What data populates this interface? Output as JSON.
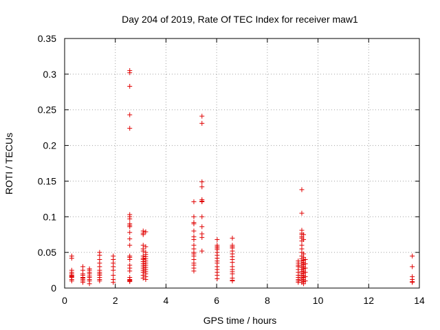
{
  "chart_data": {
    "type": "scatter",
    "title": "Day 204 of 2019, Rate Of TEC Index for receiver maw1",
    "xlabel": "GPS time / hours",
    "ylabel": "ROTI / TECUs",
    "xlim": [
      0,
      14
    ],
    "ylim": [
      0,
      0.35
    ],
    "x_ticks": [
      0,
      2,
      4,
      6,
      8,
      10,
      12,
      14
    ],
    "x_tick_labels": [
      "0",
      "2",
      "4",
      "6",
      "8",
      "10",
      "12",
      "14"
    ],
    "y_ticks": [
      0,
      0.05,
      0.1,
      0.15,
      0.2,
      0.25,
      0.3,
      0.35
    ],
    "y_tick_labels": [
      "0",
      "0.05",
      "0.1",
      "0.15",
      "0.2",
      "0.25",
      "0.3",
      "0.35"
    ],
    "grid": true,
    "marker": "+",
    "color": "#e00000",
    "series": [
      {
        "name": "ROTI",
        "points": [
          [
            0.28,
            0.045
          ],
          [
            0.28,
            0.042
          ],
          [
            0.28,
            0.025
          ],
          [
            0.28,
            0.022
          ],
          [
            0.28,
            0.02
          ],
          [
            0.28,
            0.018
          ],
          [
            0.28,
            0.017
          ],
          [
            0.28,
            0.016
          ],
          [
            0.28,
            0.015
          ],
          [
            0.28,
            0.012
          ],
          [
            0.28,
            0.01
          ],
          [
            0.72,
            0.03
          ],
          [
            0.72,
            0.025
          ],
          [
            0.72,
            0.02
          ],
          [
            0.72,
            0.018
          ],
          [
            0.72,
            0.015
          ],
          [
            0.72,
            0.014
          ],
          [
            0.72,
            0.012
          ],
          [
            0.72,
            0.01
          ],
          [
            0.72,
            0.008
          ],
          [
            0.98,
            0.027
          ],
          [
            0.98,
            0.025
          ],
          [
            0.98,
            0.022
          ],
          [
            0.98,
            0.02
          ],
          [
            0.98,
            0.017
          ],
          [
            0.98,
            0.015
          ],
          [
            0.98,
            0.012
          ],
          [
            0.98,
            0.01
          ],
          [
            0.98,
            0.006
          ],
          [
            1.38,
            0.05
          ],
          [
            1.38,
            0.046
          ],
          [
            1.38,
            0.04
          ],
          [
            1.38,
            0.035
          ],
          [
            1.38,
            0.03
          ],
          [
            1.38,
            0.025
          ],
          [
            1.38,
            0.022
          ],
          [
            1.38,
            0.02
          ],
          [
            1.38,
            0.018
          ],
          [
            1.38,
            0.015
          ],
          [
            1.38,
            0.012
          ],
          [
            1.38,
            0.01
          ],
          [
            1.92,
            0.045
          ],
          [
            1.92,
            0.04
          ],
          [
            1.92,
            0.035
          ],
          [
            1.92,
            0.03
          ],
          [
            1.92,
            0.025
          ],
          [
            1.92,
            0.018
          ],
          [
            1.92,
            0.012
          ],
          [
            1.92,
            0.008
          ],
          [
            2.57,
            0.305
          ],
          [
            2.57,
            0.302
          ],
          [
            2.57,
            0.283
          ],
          [
            2.57,
            0.243
          ],
          [
            2.57,
            0.224
          ],
          [
            2.57,
            0.103
          ],
          [
            2.57,
            0.1
          ],
          [
            2.57,
            0.097
          ],
          [
            2.57,
            0.09
          ],
          [
            2.57,
            0.088
          ],
          [
            2.57,
            0.086
          ],
          [
            2.57,
            0.078
          ],
          [
            2.57,
            0.069
          ],
          [
            2.57,
            0.06
          ],
          [
            2.57,
            0.045
          ],
          [
            2.57,
            0.043
          ],
          [
            2.57,
            0.04
          ],
          [
            2.57,
            0.032
          ],
          [
            2.57,
            0.028
          ],
          [
            2.57,
            0.024
          ],
          [
            2.57,
            0.015
          ],
          [
            2.57,
            0.012
          ],
          [
            2.57,
            0.011
          ],
          [
            2.57,
            0.01
          ],
          [
            2.57,
            0.009
          ],
          [
            3.1,
            0.08
          ],
          [
            3.1,
            0.077
          ],
          [
            3.1,
            0.075
          ],
          [
            3.1,
            0.06
          ],
          [
            3.1,
            0.055
          ],
          [
            3.1,
            0.052
          ],
          [
            3.1,
            0.045
          ],
          [
            3.1,
            0.042
          ],
          [
            3.1,
            0.04
          ],
          [
            3.1,
            0.037
          ],
          [
            3.1,
            0.034
          ],
          [
            3.1,
            0.031
          ],
          [
            3.1,
            0.028
          ],
          [
            3.1,
            0.025
          ],
          [
            3.1,
            0.022
          ],
          [
            3.1,
            0.018
          ],
          [
            3.1,
            0.014
          ],
          [
            3.2,
            0.079
          ],
          [
            3.2,
            0.058
          ],
          [
            3.2,
            0.05
          ],
          [
            3.2,
            0.047
          ],
          [
            3.2,
            0.044
          ],
          [
            3.2,
            0.041
          ],
          [
            3.2,
            0.038
          ],
          [
            3.2,
            0.035
          ],
          [
            3.2,
            0.032
          ],
          [
            3.2,
            0.029
          ],
          [
            3.2,
            0.026
          ],
          [
            3.2,
            0.023
          ],
          [
            3.2,
            0.02
          ],
          [
            3.2,
            0.016
          ],
          [
            3.2,
            0.012
          ],
          [
            5.1,
            0.121
          ],
          [
            5.1,
            0.1
          ],
          [
            5.1,
            0.092
          ],
          [
            5.1,
            0.09
          ],
          [
            5.1,
            0.08
          ],
          [
            5.1,
            0.072
          ],
          [
            5.1,
            0.068
          ],
          [
            5.1,
            0.06
          ],
          [
            5.1,
            0.055
          ],
          [
            5.1,
            0.05
          ],
          [
            5.1,
            0.048
          ],
          [
            5.1,
            0.045
          ],
          [
            5.1,
            0.04
          ],
          [
            5.1,
            0.035
          ],
          [
            5.1,
            0.032
          ],
          [
            5.1,
            0.028
          ],
          [
            5.1,
            0.024
          ],
          [
            5.42,
            0.241
          ],
          [
            5.42,
            0.231
          ],
          [
            5.42,
            0.149
          ],
          [
            5.42,
            0.142
          ],
          [
            5.42,
            0.124
          ],
          [
            5.42,
            0.122
          ],
          [
            5.42,
            0.121
          ],
          [
            5.42,
            0.1
          ],
          [
            5.42,
            0.086
          ],
          [
            5.42,
            0.076
          ],
          [
            5.42,
            0.071
          ],
          [
            5.42,
            0.052
          ],
          [
            6.02,
            0.068
          ],
          [
            6.02,
            0.06
          ],
          [
            6.02,
            0.058
          ],
          [
            6.02,
            0.056
          ],
          [
            6.02,
            0.054
          ],
          [
            6.02,
            0.05
          ],
          [
            6.02,
            0.046
          ],
          [
            6.02,
            0.042
          ],
          [
            6.02,
            0.038
          ],
          [
            6.02,
            0.035
          ],
          [
            6.02,
            0.03
          ],
          [
            6.02,
            0.026
          ],
          [
            6.02,
            0.022
          ],
          [
            6.02,
            0.018
          ],
          [
            6.02,
            0.013
          ],
          [
            6.62,
            0.07
          ],
          [
            6.62,
            0.06
          ],
          [
            6.62,
            0.058
          ],
          [
            6.62,
            0.056
          ],
          [
            6.62,
            0.052
          ],
          [
            6.62,
            0.048
          ],
          [
            6.62,
            0.044
          ],
          [
            6.62,
            0.04
          ],
          [
            6.62,
            0.036
          ],
          [
            6.62,
            0.03
          ],
          [
            6.62,
            0.026
          ],
          [
            6.62,
            0.023
          ],
          [
            6.62,
            0.02
          ],
          [
            6.62,
            0.014
          ],
          [
            6.62,
            0.011
          ],
          [
            6.62,
            0.01
          ],
          [
            9.22,
            0.038
          ],
          [
            9.22,
            0.035
          ],
          [
            9.22,
            0.032
          ],
          [
            9.22,
            0.03
          ],
          [
            9.22,
            0.026
          ],
          [
            9.22,
            0.022
          ],
          [
            9.22,
            0.018
          ],
          [
            9.22,
            0.015
          ],
          [
            9.22,
            0.012
          ],
          [
            9.22,
            0.01
          ],
          [
            9.22,
            0.008
          ],
          [
            9.36,
            0.138
          ],
          [
            9.36,
            0.105
          ],
          [
            9.36,
            0.081
          ],
          [
            9.36,
            0.077
          ],
          [
            9.36,
            0.075
          ],
          [
            9.36,
            0.072
          ],
          [
            9.36,
            0.07
          ],
          [
            9.36,
            0.066
          ],
          [
            9.36,
            0.06
          ],
          [
            9.36,
            0.055
          ],
          [
            9.36,
            0.05
          ],
          [
            9.36,
            0.045
          ],
          [
            9.36,
            0.041
          ],
          [
            9.36,
            0.038
          ],
          [
            9.36,
            0.035
          ],
          [
            9.36,
            0.032
          ],
          [
            9.36,
            0.029
          ],
          [
            9.36,
            0.026
          ],
          [
            9.36,
            0.023
          ],
          [
            9.36,
            0.02
          ],
          [
            9.36,
            0.017
          ],
          [
            9.36,
            0.014
          ],
          [
            9.36,
            0.011
          ],
          [
            9.36,
            0.008
          ],
          [
            9.43,
            0.075
          ],
          [
            9.43,
            0.068
          ],
          [
            9.43,
            0.048
          ],
          [
            9.43,
            0.043
          ],
          [
            9.43,
            0.039
          ],
          [
            9.43,
            0.036
          ],
          [
            9.43,
            0.033
          ],
          [
            9.43,
            0.03
          ],
          [
            9.43,
            0.027
          ],
          [
            9.43,
            0.024
          ],
          [
            9.43,
            0.021
          ],
          [
            9.43,
            0.018
          ],
          [
            9.43,
            0.015
          ],
          [
            9.43,
            0.012
          ],
          [
            9.43,
            0.009
          ],
          [
            9.43,
            0.006
          ],
          [
            9.5,
            0.04
          ],
          [
            9.5,
            0.034
          ],
          [
            9.5,
            0.028
          ],
          [
            9.5,
            0.022
          ],
          [
            9.5,
            0.016
          ],
          [
            9.5,
            0.01
          ],
          [
            13.72,
            0.045
          ],
          [
            13.72,
            0.03
          ],
          [
            13.72,
            0.016
          ],
          [
            13.72,
            0.012
          ],
          [
            13.72,
            0.009
          ],
          [
            13.72,
            0.008
          ]
        ]
      }
    ]
  }
}
